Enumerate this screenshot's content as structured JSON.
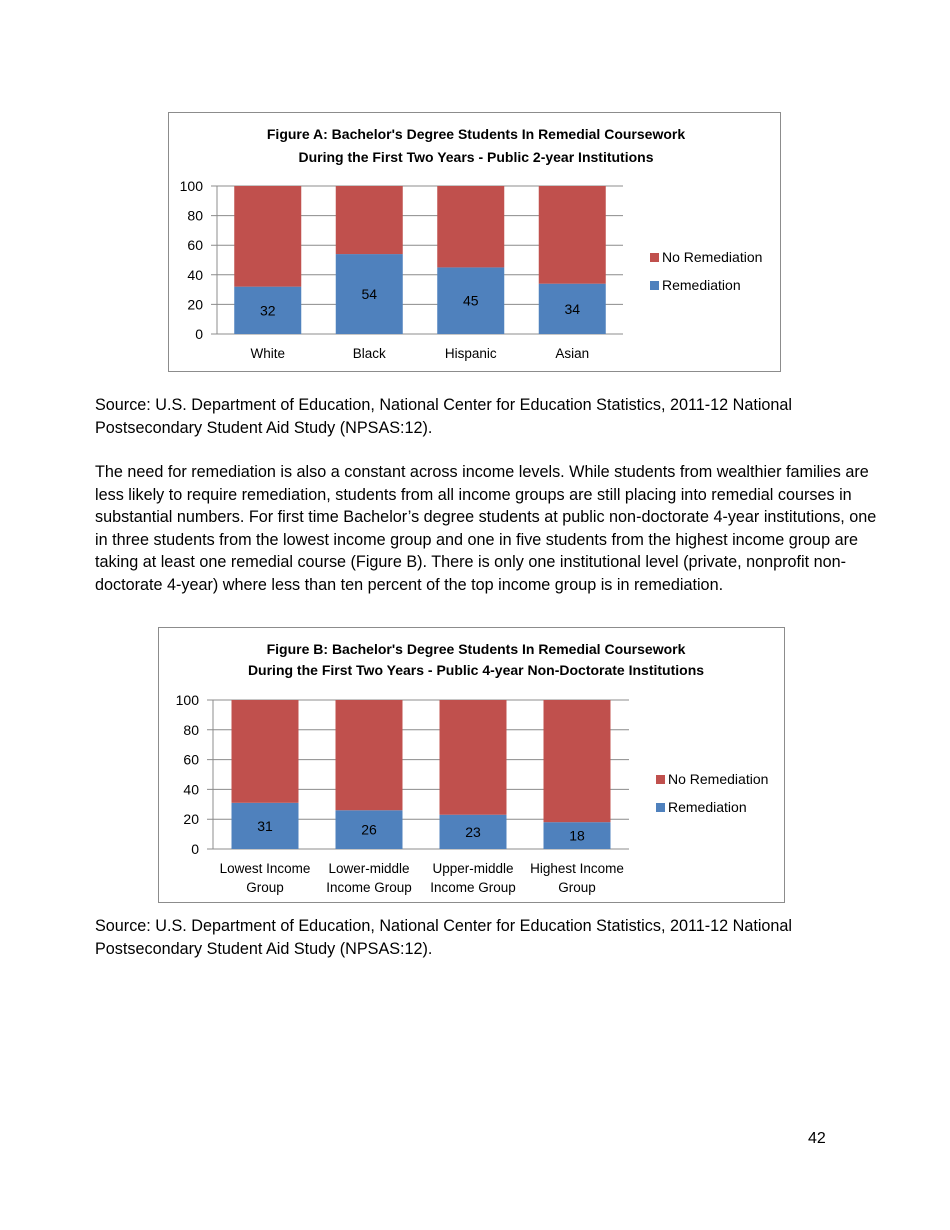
{
  "chart_data": [
    {
      "type": "bar",
      "stacked": true,
      "title": "Figure A: Bachelor's Degree Students In Remedial Coursework",
      "subtitle": "During the First Two Years - Public 2-year Institutions",
      "categories": [
        [
          "White"
        ],
        [
          "Black"
        ],
        [
          "Hispanic"
        ],
        [
          "Asian"
        ]
      ],
      "series": [
        {
          "name": "Remediation",
          "color": "#4f81bd",
          "values": [
            32,
            54,
            45,
            34
          ]
        },
        {
          "name": "No Remediation",
          "color": "#c0504d",
          "values": [
            68,
            46,
            55,
            66
          ]
        }
      ],
      "data_labels": [
        "32",
        "54",
        "45",
        "34"
      ],
      "yticks": [
        "0",
        "20",
        "40",
        "60",
        "80",
        "100"
      ],
      "ylim": [
        0,
        100
      ],
      "grid": true,
      "legend": "right"
    },
    {
      "type": "bar",
      "stacked": true,
      "title": "Figure B: Bachelor's Degree Students In Remedial Coursework",
      "subtitle": "During the First Two Years - Public 4-year Non-Doctorate Institutions",
      "categories": [
        [
          "Lowest Income",
          "Group"
        ],
        [
          "Lower-middle",
          "Income Group"
        ],
        [
          "Upper-middle",
          "Income Group"
        ],
        [
          "Highest Income",
          "Group"
        ]
      ],
      "series": [
        {
          "name": "Remediation",
          "color": "#4f81bd",
          "values": [
            31,
            26,
            23,
            18
          ]
        },
        {
          "name": "No Remediation",
          "color": "#c0504d",
          "values": [
            69,
            74,
            77,
            82
          ]
        }
      ],
      "data_labels": [
        "31",
        "26",
        "23",
        "18"
      ],
      "yticks": [
        "0",
        "20",
        "40",
        "60",
        "80",
        "100"
      ],
      "ylim": [
        0,
        100
      ],
      "grid": true,
      "legend": "right"
    }
  ],
  "source_a": "Source: U.S. Department of Education, National Center for Education Statistics, 2011-12 National Postsecondary Student Aid Study (NPSAS:12).",
  "paragraph": "The need for remediation is also a constant across income levels. While students from wealthier families are less likely to require remediation, students from all income groups are still placing into remedial courses in substantial numbers. For first time Bachelor’s degree students at public non-doctorate 4-year institutions, one in three students from the lowest income group and one in five students from the highest income group are taking at least one remedial course (Figure B). There is only one institutional level (private, nonprofit non-doctorate 4-year) where less than ten percent of the top income group is in remediation.",
  "source_b": "Source: U.S. Department of Education, National Center for Education Statistics, 2011-12 National Postsecondary Student Aid Study (NPSAS:12).",
  "page_number": "42"
}
